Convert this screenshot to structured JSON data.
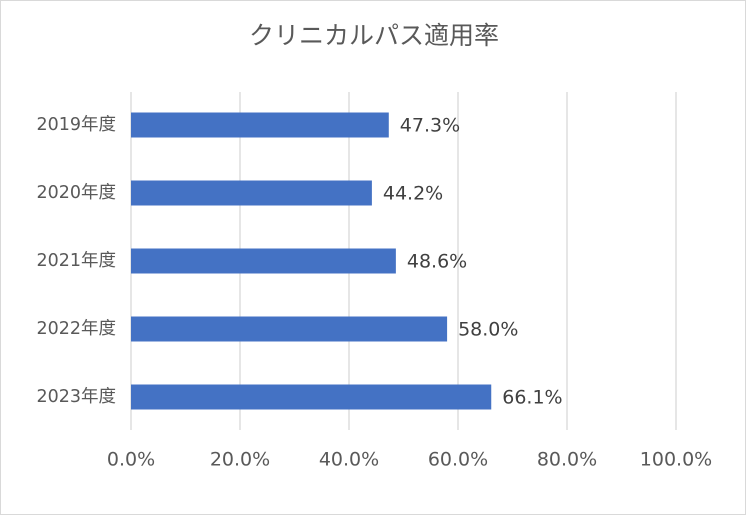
{
  "chart_data": {
    "type": "bar",
    "orientation": "horizontal",
    "title": "クリニカルパス適用率",
    "categories": [
      "2019年度",
      "2020年度",
      "2021年度",
      "2022年度",
      "2023年度"
    ],
    "values": [
      47.3,
      44.2,
      48.6,
      58.0,
      66.1
    ],
    "data_labels": [
      "47.3%",
      "44.2%",
      "48.6%",
      "58.0%",
      "66.1%"
    ],
    "xlim": [
      0,
      100
    ],
    "x_ticks": [
      0,
      20,
      40,
      60,
      80,
      100
    ],
    "x_tick_labels": [
      "0.0%",
      "20.0%",
      "40.0%",
      "60.0%",
      "80.0%",
      "100.0%"
    ],
    "grid": true,
    "legend": "none",
    "bar_color": "#4472c4"
  }
}
